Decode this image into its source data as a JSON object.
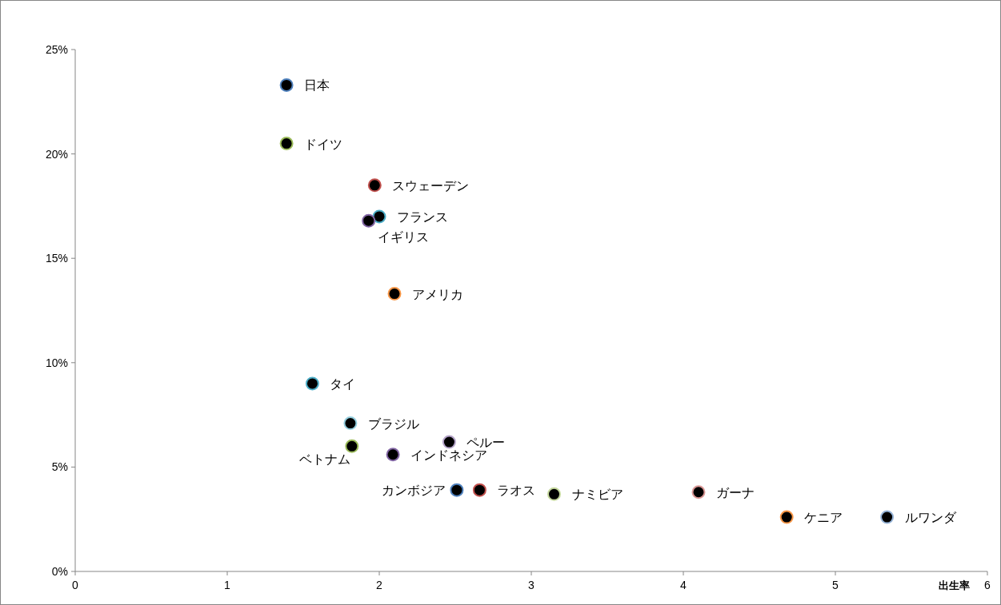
{
  "chart_data": {
    "type": "scatter",
    "xlabel": "出生率",
    "marker": "circle",
    "x": [
      1.39,
      1.39,
      1.97,
      2.0,
      1.93,
      2.1,
      1.56,
      1.81,
      1.82,
      2.46,
      2.09,
      2.51,
      2.66,
      3.15,
      4.1,
      4.68,
      5.34
    ],
    "values": [
      23.3,
      20.5,
      18.5,
      17.0,
      16.8,
      13.3,
      9.0,
      7.1,
      6.0,
      6.2,
      5.6,
      3.9,
      3.9,
      3.7,
      3.8,
      2.6,
      2.6
    ],
    "colors": [
      "#4f81bd",
      "#9bbb59",
      "#c0504d",
      "#4bacc6",
      "#8064a2",
      "#f79646",
      "#4bacc6",
      "#93cddd",
      "#9bbb59",
      "#b3a2c7",
      "#8064a2",
      "#4f81bd",
      "#c0504d",
      "#c3d69b",
      "#d99694",
      "#f79646",
      "#95b3d7"
    ],
    "xlim": [
      0,
      6
    ],
    "ylim": [
      0,
      25
    ],
    "xticks": [
      0,
      1,
      2,
      3,
      4,
      5,
      6
    ],
    "yticks": [
      {
        "value": 0,
        "label": "0%"
      },
      {
        "value": 5,
        "label": "5%"
      },
      {
        "value": 10,
        "label": "10%"
      },
      {
        "value": 15,
        "label": "15%"
      },
      {
        "value": 20,
        "label": "20%"
      },
      {
        "value": 25,
        "label": "25%"
      }
    ],
    "grid": false,
    "annotations": [
      {
        "text": "日本",
        "x": 1.39,
        "y": 23.3
      },
      {
        "text": "ドイツ",
        "x": 1.39,
        "y": 20.5
      },
      {
        "text": "スウェーデン",
        "x": 1.97,
        "y": 18.5
      },
      {
        "text": "フランス",
        "x": 2.0,
        "y": 17.0
      },
      {
        "text": "イギリス",
        "x": 1.93,
        "y": 16.8
      },
      {
        "text": "アメリカ",
        "x": 2.1,
        "y": 13.3
      },
      {
        "text": "タイ",
        "x": 1.56,
        "y": 9.0
      },
      {
        "text": "ブラジル",
        "x": 1.81,
        "y": 7.1
      },
      {
        "text": "ベトナム",
        "x": 1.82,
        "y": 6.0
      },
      {
        "text": "ペルー",
        "x": 2.46,
        "y": 6.2
      },
      {
        "text": "インドネシア",
        "x": 2.09,
        "y": 5.6
      },
      {
        "text": "カンボジア",
        "x": 2.51,
        "y": 3.9
      },
      {
        "text": "ラオス",
        "x": 2.66,
        "y": 3.9
      },
      {
        "text": "ナミビア",
        "x": 3.15,
        "y": 3.7
      },
      {
        "text": "ガーナ",
        "x": 4.1,
        "y": 3.8
      },
      {
        "text": "ケニア",
        "x": 4.68,
        "y": 2.6
      },
      {
        "text": "ルワンダ",
        "x": 5.34,
        "y": 2.6
      }
    ]
  }
}
